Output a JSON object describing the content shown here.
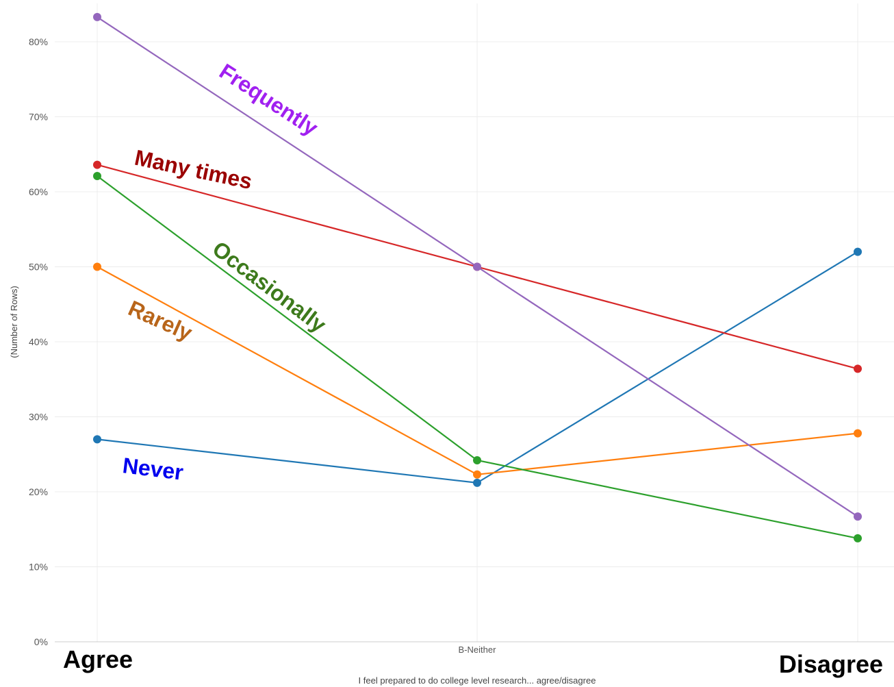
{
  "chart_data": {
    "type": "line",
    "categories": [
      "",
      "B-Neither",
      ""
    ],
    "xlabel": "I feel prepared to do college level research... agree/disagree",
    "ylabel": "(Number of Rows)",
    "ylim": [
      0,
      85
    ],
    "yticks": [
      "0%",
      "10%",
      "20%",
      "30%",
      "40%",
      "50%",
      "60%",
      "70%",
      "80%"
    ],
    "ytick_values": [
      0,
      10,
      20,
      30,
      40,
      50,
      60,
      70,
      80
    ],
    "grid": true,
    "end_labels": {
      "left": "Agree",
      "right": "Disagree"
    },
    "series": [
      {
        "name": "Never",
        "color": "#1f77b4",
        "label_color": "#0000ee",
        "values": [
          27.0,
          21.2,
          52.0
        ]
      },
      {
        "name": "Rarely",
        "color": "#ff7f0e",
        "label_color": "#b8651a",
        "values": [
          50.0,
          22.3,
          27.8
        ]
      },
      {
        "name": "Occasionally",
        "color": "#2ca02c",
        "label_color": "#3d7a1c",
        "values": [
          62.1,
          24.2,
          13.8
        ]
      },
      {
        "name": "Many times",
        "color": "#d62728",
        "label_color": "#9a0000",
        "values": [
          63.6,
          50.0,
          36.4
        ]
      },
      {
        "name": "Frequently",
        "color": "#9467bd",
        "label_color": "#a020f0",
        "values": [
          83.3,
          50.0,
          16.7
        ]
      }
    ]
  }
}
